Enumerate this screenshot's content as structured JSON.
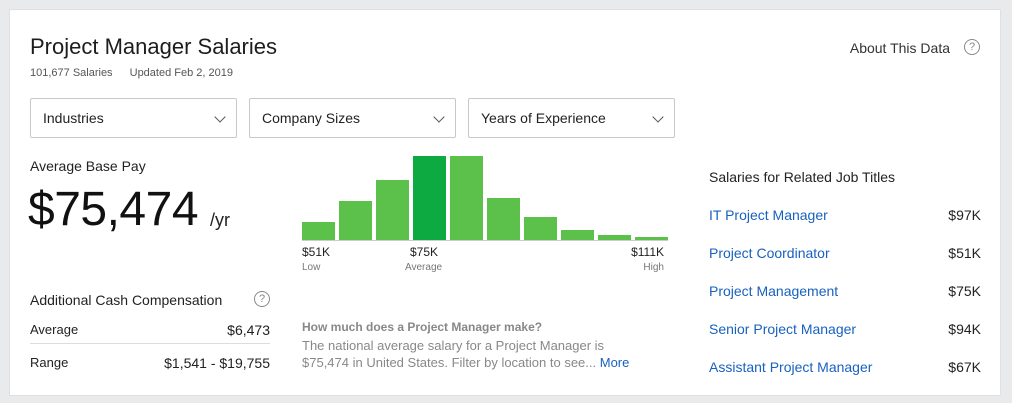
{
  "header": {
    "title": "Project Manager Salaries",
    "salary_count": "101,677 Salaries",
    "updated": "Updated Feb 2, 2019",
    "about_label": "About This Data",
    "help_glyph": "?"
  },
  "filters": [
    {
      "label": "Industries"
    },
    {
      "label": "Company Sizes"
    },
    {
      "label": "Years of Experience"
    }
  ],
  "base_pay": {
    "label": "Average Base Pay",
    "value": "$75,474",
    "unit": "/yr"
  },
  "histogram": {
    "bars": [
      0.21,
      0.46,
      0.72,
      1.0,
      1.0,
      0.5,
      0.27,
      0.12,
      0.06,
      0.03
    ],
    "active_index": 3,
    "low_value": "$51K",
    "low_label": "Low",
    "avg_value": "$75K",
    "avg_label": "Average",
    "high_value": "$111K",
    "high_label": "High",
    "bar_color": "#5bc14a",
    "active_color": "#0caa41"
  },
  "cash_comp": {
    "title": "Additional Cash Compensation",
    "average_label": "Average",
    "average_value": "$6,473",
    "range_label": "Range",
    "range_value": "$1,541 - $19,755"
  },
  "faq": {
    "question": "How much does a Project Manager make?",
    "answer": "The national average salary for a Project Manager is $75,474 in United States. Filter by location to see...",
    "more": "More"
  },
  "related": {
    "title": "Salaries for Related Job Titles",
    "items": [
      {
        "name": "IT Project Manager",
        "amount": "$97K"
      },
      {
        "name": "Project Coordinator",
        "amount": "$51K"
      },
      {
        "name": "Project Management",
        "amount": "$75K"
      },
      {
        "name": "Senior Project Manager",
        "amount": "$94K"
      },
      {
        "name": "Assistant Project Manager",
        "amount": "$67K"
      }
    ]
  },
  "colors": {
    "link": "#1861bf",
    "accent": "#0caa41"
  }
}
